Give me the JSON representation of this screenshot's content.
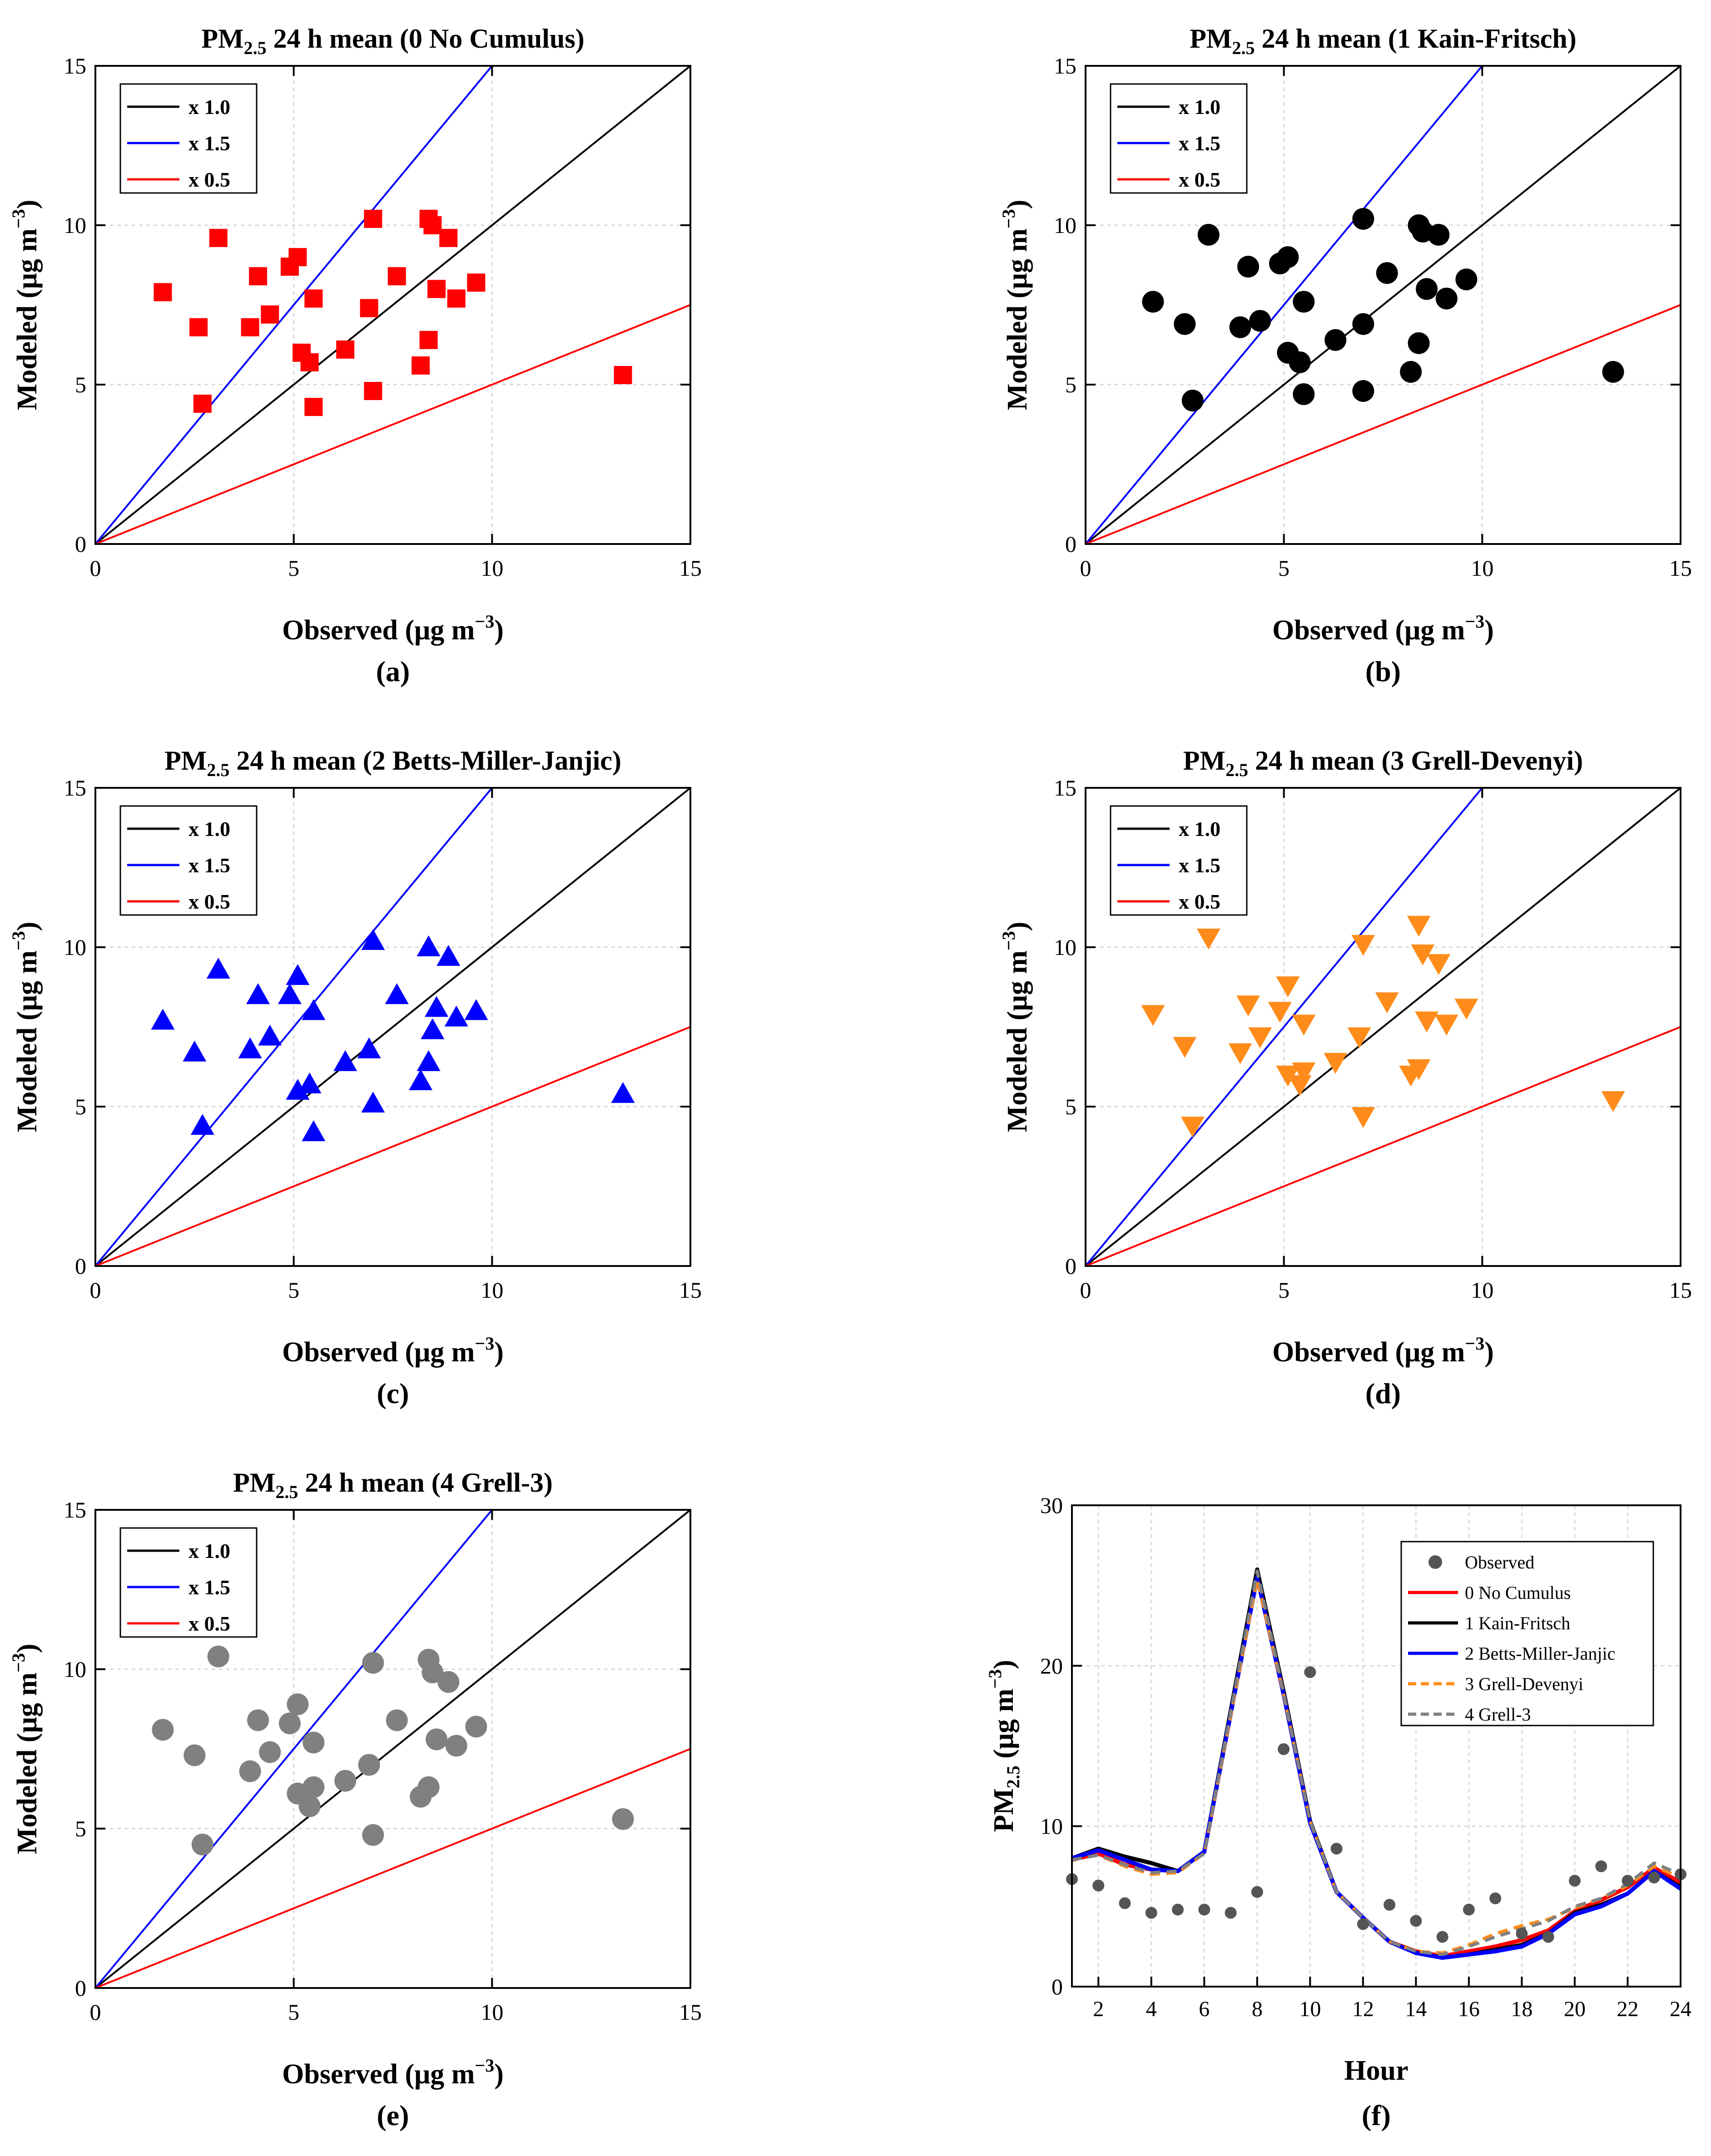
{
  "chart_data": [
    {
      "panel": "a",
      "type": "scatter",
      "title_main": "PM",
      "title_sub": "2.5",
      "title_rest": " 24 h mean (0 No Cumulus)",
      "xlabel": "Observed (μg m",
      "ylabel": "Modeled (μg m",
      "unit_exp": "−3",
      "label_close": ")",
      "panel_label": "(a)",
      "xlim": [
        0,
        15
      ],
      "ylim": [
        0,
        15
      ],
      "xticks": [
        "0",
        "5",
        "10",
        "15"
      ],
      "yticks": [
        "0",
        "5",
        "10",
        "15"
      ],
      "marker": "square",
      "marker_color": "#ff0000",
      "legend": [
        {
          "name": "x 1.0",
          "slope": 1.0,
          "color": "#000000"
        },
        {
          "name": "x 1.5",
          "slope": 1.5,
          "color": "#0000ff"
        },
        {
          "name": "x 0.5",
          "slope": 0.5,
          "color": "#ff0000"
        }
      ],
      "x": [
        1.7,
        2.6,
        2.7,
        3.1,
        3.9,
        4.1,
        4.4,
        4.9,
        5.1,
        5.2,
        5.4,
        5.5,
        5.5,
        6.3,
        6.9,
        7.0,
        7.0,
        7.6,
        8.2,
        8.4,
        8.4,
        8.5,
        8.6,
        8.9,
        9.1,
        9.6,
        13.3
      ],
      "y": [
        7.9,
        6.8,
        4.4,
        9.6,
        6.8,
        8.4,
        7.2,
        8.7,
        9.0,
        6.0,
        5.7,
        7.7,
        4.3,
        6.1,
        7.4,
        10.2,
        4.8,
        8.4,
        5.6,
        10.2,
        6.4,
        10.0,
        8.0,
        9.6,
        7.7,
        8.2,
        5.3
      ]
    },
    {
      "panel": "b",
      "type": "scatter",
      "title_main": "PM",
      "title_sub": "2.5",
      "title_rest": " 24 h mean (1 Kain-Fritsch)",
      "xlabel": "Observed (μg m",
      "ylabel": "Modeled (μg m",
      "unit_exp": "−3",
      "label_close": ")",
      "panel_label": "(b)",
      "xlim": [
        0,
        15
      ],
      "ylim": [
        0,
        15
      ],
      "xticks": [
        "0",
        "5",
        "10",
        "15"
      ],
      "yticks": [
        "0",
        "5",
        "10",
        "15"
      ],
      "marker": "circle",
      "marker_color": "#000000",
      "legend": [
        {
          "name": "x 1.0",
          "slope": 1.0,
          "color": "#000000"
        },
        {
          "name": "x 1.5",
          "slope": 1.5,
          "color": "#0000ff"
        },
        {
          "name": "x 0.5",
          "slope": 0.5,
          "color": "#ff0000"
        }
      ],
      "x": [
        1.7,
        2.5,
        2.7,
        3.1,
        3.9,
        4.1,
        4.4,
        4.9,
        5.1,
        5.1,
        5.4,
        5.5,
        5.5,
        6.3,
        7.0,
        7.0,
        7.0,
        7.6,
        8.2,
        8.4,
        8.4,
        8.5,
        8.6,
        8.9,
        9.1,
        9.6,
        13.3
      ],
      "y": [
        7.6,
        6.9,
        4.5,
        9.7,
        6.8,
        8.7,
        7.0,
        8.8,
        9.0,
        6.0,
        5.7,
        7.6,
        4.7,
        6.4,
        10.2,
        6.9,
        4.8,
        8.5,
        5.4,
        10.0,
        6.3,
        9.8,
        8.0,
        9.7,
        7.7,
        8.3,
        5.4
      ]
    },
    {
      "panel": "c",
      "type": "scatter",
      "title_main": "PM",
      "title_sub": "2.5",
      "title_rest": " 24 h mean (2 Betts-Miller-Janjic)",
      "xlabel": "Observed (μg m",
      "ylabel": "Modeled (μg m",
      "unit_exp": "−3",
      "label_close": ")",
      "panel_label": "(c)",
      "xlim": [
        0,
        15
      ],
      "ylim": [
        0,
        15
      ],
      "xticks": [
        "0",
        "5",
        "10",
        "15"
      ],
      "yticks": [
        "0",
        "5",
        "10",
        "15"
      ],
      "marker": "triangle-up",
      "marker_color": "#0000ff",
      "legend": [
        {
          "name": "x 1.0",
          "slope": 1.0,
          "color": "#000000"
        },
        {
          "name": "x 1.5",
          "slope": 1.5,
          "color": "#0000ff"
        },
        {
          "name": "x 0.5",
          "slope": 0.5,
          "color": "#ff0000"
        }
      ],
      "x": [
        1.7,
        2.5,
        2.7,
        3.1,
        3.9,
        4.1,
        4.4,
        4.9,
        5.1,
        5.1,
        5.4,
        5.5,
        5.5,
        6.3,
        6.9,
        7.0,
        7.0,
        7.6,
        8.2,
        8.4,
        8.4,
        8.5,
        8.6,
        8.9,
        9.1,
        9.6,
        13.3
      ],
      "y": [
        7.7,
        6.7,
        4.4,
        9.3,
        6.8,
        8.5,
        7.2,
        8.5,
        9.1,
        5.5,
        5.7,
        8.0,
        4.2,
        6.4,
        6.8,
        10.2,
        5.1,
        8.5,
        5.8,
        10.0,
        6.4,
        7.4,
        8.1,
        9.7,
        7.8,
        8.0,
        5.4
      ]
    },
    {
      "panel": "d",
      "type": "scatter",
      "title_main": "PM",
      "title_sub": "2.5",
      "title_rest": " 24 h mean (3 Grell-Devenyi)",
      "xlabel": "Observed (μg m",
      "ylabel": "Modeled (μg m",
      "unit_exp": "−3",
      "label_close": ")",
      "panel_label": "(d)",
      "xlim": [
        0,
        15
      ],
      "ylim": [
        0,
        15
      ],
      "xticks": [
        "0",
        "5",
        "10",
        "15"
      ],
      "yticks": [
        "0",
        "5",
        "10",
        "15"
      ],
      "marker": "triangle-down",
      "marker_color": "#ff8c1a",
      "legend": [
        {
          "name": "x 1.0",
          "slope": 1.0,
          "color": "#000000"
        },
        {
          "name": "x 1.5",
          "slope": 1.5,
          "color": "#0000ff"
        },
        {
          "name": "x 0.5",
          "slope": 0.5,
          "color": "#ff0000"
        }
      ],
      "x": [
        1.7,
        2.5,
        2.7,
        3.1,
        3.9,
        4.1,
        4.4,
        4.9,
        5.1,
        5.1,
        5.4,
        5.5,
        5.5,
        6.3,
        6.9,
        7.0,
        7.0,
        7.6,
        8.2,
        8.4,
        8.4,
        8.5,
        8.6,
        8.9,
        9.1,
        9.6,
        13.3
      ],
      "y": [
        7.9,
        6.9,
        4.4,
        10.3,
        6.7,
        8.2,
        7.2,
        8.0,
        8.8,
        6.0,
        5.7,
        7.6,
        6.1,
        6.4,
        7.2,
        10.1,
        4.7,
        8.3,
        6.0,
        10.7,
        6.2,
        9.8,
        7.7,
        9.5,
        7.6,
        8.1,
        5.2
      ]
    },
    {
      "panel": "e",
      "type": "scatter",
      "title_main": "PM",
      "title_sub": "2.5",
      "title_rest": " 24 h mean (4 Grell-3)",
      "xlabel": "Observed (μg m",
      "ylabel": "Modeled (μg m",
      "unit_exp": "−3",
      "label_close": ")",
      "panel_label": "(e)",
      "xlim": [
        0,
        15
      ],
      "ylim": [
        0,
        15
      ],
      "xticks": [
        "0",
        "5",
        "10",
        "15"
      ],
      "yticks": [
        "0",
        "5",
        "10",
        "15"
      ],
      "marker": "circle",
      "marker_color": "#808080",
      "legend": [
        {
          "name": "x 1.0",
          "slope": 1.0,
          "color": "#000000"
        },
        {
          "name": "x 1.5",
          "slope": 1.5,
          "color": "#0000ff"
        },
        {
          "name": "x 0.5",
          "slope": 0.5,
          "color": "#ff0000"
        }
      ],
      "x": [
        1.7,
        2.5,
        2.7,
        3.1,
        3.9,
        4.1,
        4.4,
        4.9,
        5.1,
        5.1,
        5.4,
        5.5,
        5.5,
        6.3,
        6.9,
        7.0,
        7.0,
        7.6,
        8.2,
        8.4,
        8.4,
        8.5,
        8.6,
        8.9,
        9.1,
        9.6,
        13.3
      ],
      "y": [
        8.1,
        7.3,
        4.5,
        10.4,
        6.8,
        8.4,
        7.4,
        8.3,
        8.9,
        6.1,
        5.7,
        7.7,
        6.3,
        6.5,
        7.0,
        10.2,
        4.8,
        8.4,
        6.0,
        10.3,
        6.3,
        9.9,
        7.8,
        9.6,
        7.6,
        8.2,
        5.3
      ]
    },
    {
      "panel": "f",
      "type": "line",
      "ylabel_main": "PM",
      "ylabel_sub": "2.5",
      "ylabel_rest": " (μg m",
      "unit_exp": "−3",
      "label_close": ")",
      "xlabel": "Hour",
      "panel_label": "(f)",
      "xlim": [
        1,
        24
      ],
      "ylim": [
        0,
        30
      ],
      "xticks": [
        "2",
        "4",
        "6",
        "8",
        "10",
        "12",
        "14",
        "16",
        "18",
        "20",
        "22",
        "24"
      ],
      "yticks": [
        "0",
        "10",
        "20",
        "30"
      ],
      "x": [
        1,
        2,
        3,
        4,
        5,
        6,
        7,
        8,
        9,
        10,
        11,
        12,
        13,
        14,
        15,
        16,
        17,
        18,
        19,
        20,
        21,
        22,
        23,
        24
      ],
      "observed": {
        "name": "Observed",
        "color": "#555555",
        "x": [
          1,
          2,
          3,
          4,
          5,
          6,
          7,
          8,
          9,
          10,
          11,
          12,
          13,
          14,
          15,
          16,
          17,
          18,
          19,
          20,
          21,
          22,
          23,
          24
        ],
        "y": [
          6.7,
          6.3,
          5.2,
          4.6,
          4.8,
          4.8,
          4.6,
          5.9,
          14.8,
          19.6,
          8.6,
          3.9,
          5.1,
          4.1,
          3.1,
          4.8,
          5.5,
          3.3,
          3.1,
          6.6,
          7.5,
          6.6,
          6.8,
          7.0
        ]
      },
      "series": [
        {
          "name": "0 No Cumulus",
          "color": "#ff0000",
          "dash": "solid",
          "values": [
            7.9,
            8.3,
            7.6,
            7.3,
            7.2,
            8.4,
            17.0,
            25.8,
            18.4,
            10.3,
            5.9,
            4.3,
            2.8,
            2.2,
            1.9,
            2.2,
            2.5,
            2.9,
            3.5,
            4.7,
            5.4,
            6.2,
            7.4,
            6.5
          ]
        },
        {
          "name": "1 Kain-Fritsch",
          "color": "#000000",
          "dash": "solid",
          "values": [
            8.0,
            8.6,
            8.1,
            7.7,
            7.2,
            8.4,
            17.2,
            26.0,
            18.4,
            10.3,
            5.9,
            4.3,
            2.8,
            2.1,
            1.8,
            2.0,
            2.3,
            2.6,
            3.3,
            4.6,
            5.1,
            5.8,
            7.2,
            6.2
          ]
        },
        {
          "name": "2 Betts-Miller-Janjic",
          "color": "#0000ff",
          "dash": "solid",
          "values": [
            8.0,
            8.5,
            7.9,
            7.3,
            7.2,
            8.4,
            17.0,
            25.5,
            18.2,
            10.2,
            5.9,
            4.3,
            2.8,
            2.1,
            1.8,
            2.0,
            2.2,
            2.5,
            3.3,
            4.5,
            5.0,
            5.8,
            7.2,
            6.1
          ]
        },
        {
          "name": "3 Grell-Devenyi",
          "color": "#ff8c1a",
          "dash": "dashed",
          "values": [
            7.9,
            8.2,
            7.5,
            7.0,
            7.1,
            8.3,
            16.9,
            25.4,
            18.2,
            10.3,
            5.9,
            4.3,
            2.8,
            2.2,
            2.1,
            2.6,
            3.3,
            3.8,
            4.2,
            4.9,
            5.5,
            6.3,
            7.5,
            6.8
          ]
        },
        {
          "name": "4 Grell-3",
          "color": "#808080",
          "dash": "dashed",
          "values": [
            7.9,
            8.2,
            7.6,
            7.1,
            7.2,
            8.3,
            17.1,
            25.9,
            18.3,
            10.3,
            5.9,
            4.3,
            2.8,
            2.2,
            2.0,
            2.5,
            3.1,
            3.6,
            4.1,
            5.0,
            5.5,
            6.4,
            7.7,
            7.0
          ]
        }
      ]
    }
  ]
}
